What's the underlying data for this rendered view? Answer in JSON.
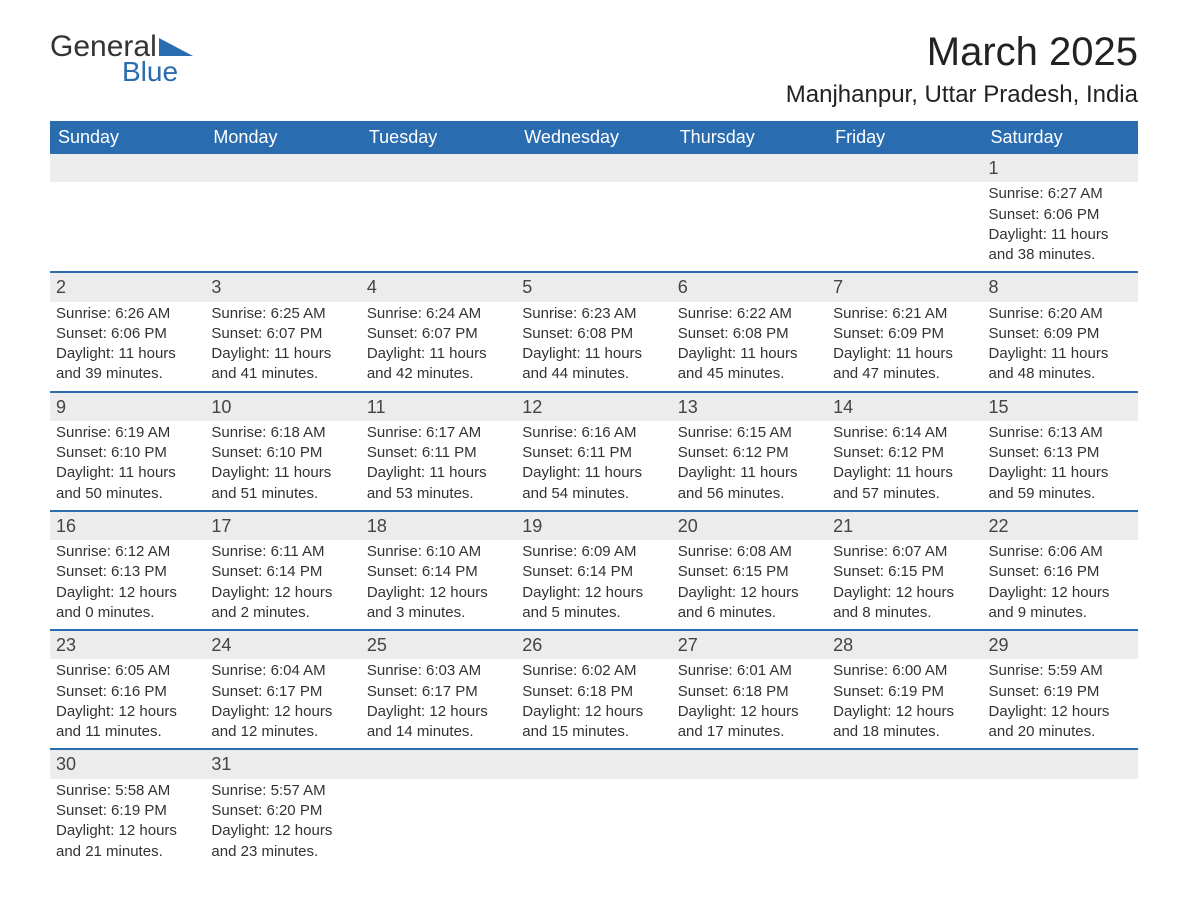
{
  "logo": {
    "general": "General",
    "blue": "Blue",
    "triangle_color": "#2a6cb0"
  },
  "title": "March 2025",
  "location": "Manjhanpur, Uttar Pradesh, India",
  "colors": {
    "header_bg": "#2a6cb0",
    "header_fg": "#ffffff",
    "daynum_bg": "#ececec",
    "text": "#333333",
    "row_divider": "#2a6cb0"
  },
  "fonts": {
    "title_size_pt": 30,
    "location_size_pt": 18,
    "header_size_pt": 14,
    "daynum_size_pt": 14,
    "body_size_pt": 11
  },
  "weekdays": [
    "Sunday",
    "Monday",
    "Tuesday",
    "Wednesday",
    "Thursday",
    "Friday",
    "Saturday"
  ],
  "weeks": [
    [
      null,
      null,
      null,
      null,
      null,
      null,
      {
        "n": "1",
        "sunrise": "Sunrise: 6:27 AM",
        "sunset": "Sunset: 6:06 PM",
        "daylight1": "Daylight: 11 hours",
        "daylight2": "and 38 minutes."
      }
    ],
    [
      {
        "n": "2",
        "sunrise": "Sunrise: 6:26 AM",
        "sunset": "Sunset: 6:06 PM",
        "daylight1": "Daylight: 11 hours",
        "daylight2": "and 39 minutes."
      },
      {
        "n": "3",
        "sunrise": "Sunrise: 6:25 AM",
        "sunset": "Sunset: 6:07 PM",
        "daylight1": "Daylight: 11 hours",
        "daylight2": "and 41 minutes."
      },
      {
        "n": "4",
        "sunrise": "Sunrise: 6:24 AM",
        "sunset": "Sunset: 6:07 PM",
        "daylight1": "Daylight: 11 hours",
        "daylight2": "and 42 minutes."
      },
      {
        "n": "5",
        "sunrise": "Sunrise: 6:23 AM",
        "sunset": "Sunset: 6:08 PM",
        "daylight1": "Daylight: 11 hours",
        "daylight2": "and 44 minutes."
      },
      {
        "n": "6",
        "sunrise": "Sunrise: 6:22 AM",
        "sunset": "Sunset: 6:08 PM",
        "daylight1": "Daylight: 11 hours",
        "daylight2": "and 45 minutes."
      },
      {
        "n": "7",
        "sunrise": "Sunrise: 6:21 AM",
        "sunset": "Sunset: 6:09 PM",
        "daylight1": "Daylight: 11 hours",
        "daylight2": "and 47 minutes."
      },
      {
        "n": "8",
        "sunrise": "Sunrise: 6:20 AM",
        "sunset": "Sunset: 6:09 PM",
        "daylight1": "Daylight: 11 hours",
        "daylight2": "and 48 minutes."
      }
    ],
    [
      {
        "n": "9",
        "sunrise": "Sunrise: 6:19 AM",
        "sunset": "Sunset: 6:10 PM",
        "daylight1": "Daylight: 11 hours",
        "daylight2": "and 50 minutes."
      },
      {
        "n": "10",
        "sunrise": "Sunrise: 6:18 AM",
        "sunset": "Sunset: 6:10 PM",
        "daylight1": "Daylight: 11 hours",
        "daylight2": "and 51 minutes."
      },
      {
        "n": "11",
        "sunrise": "Sunrise: 6:17 AM",
        "sunset": "Sunset: 6:11 PM",
        "daylight1": "Daylight: 11 hours",
        "daylight2": "and 53 minutes."
      },
      {
        "n": "12",
        "sunrise": "Sunrise: 6:16 AM",
        "sunset": "Sunset: 6:11 PM",
        "daylight1": "Daylight: 11 hours",
        "daylight2": "and 54 minutes."
      },
      {
        "n": "13",
        "sunrise": "Sunrise: 6:15 AM",
        "sunset": "Sunset: 6:12 PM",
        "daylight1": "Daylight: 11 hours",
        "daylight2": "and 56 minutes."
      },
      {
        "n": "14",
        "sunrise": "Sunrise: 6:14 AM",
        "sunset": "Sunset: 6:12 PM",
        "daylight1": "Daylight: 11 hours",
        "daylight2": "and 57 minutes."
      },
      {
        "n": "15",
        "sunrise": "Sunrise: 6:13 AM",
        "sunset": "Sunset: 6:13 PM",
        "daylight1": "Daylight: 11 hours",
        "daylight2": "and 59 minutes."
      }
    ],
    [
      {
        "n": "16",
        "sunrise": "Sunrise: 6:12 AM",
        "sunset": "Sunset: 6:13 PM",
        "daylight1": "Daylight: 12 hours",
        "daylight2": "and 0 minutes."
      },
      {
        "n": "17",
        "sunrise": "Sunrise: 6:11 AM",
        "sunset": "Sunset: 6:14 PM",
        "daylight1": "Daylight: 12 hours",
        "daylight2": "and 2 minutes."
      },
      {
        "n": "18",
        "sunrise": "Sunrise: 6:10 AM",
        "sunset": "Sunset: 6:14 PM",
        "daylight1": "Daylight: 12 hours",
        "daylight2": "and 3 minutes."
      },
      {
        "n": "19",
        "sunrise": "Sunrise: 6:09 AM",
        "sunset": "Sunset: 6:14 PM",
        "daylight1": "Daylight: 12 hours",
        "daylight2": "and 5 minutes."
      },
      {
        "n": "20",
        "sunrise": "Sunrise: 6:08 AM",
        "sunset": "Sunset: 6:15 PM",
        "daylight1": "Daylight: 12 hours",
        "daylight2": "and 6 minutes."
      },
      {
        "n": "21",
        "sunrise": "Sunrise: 6:07 AM",
        "sunset": "Sunset: 6:15 PM",
        "daylight1": "Daylight: 12 hours",
        "daylight2": "and 8 minutes."
      },
      {
        "n": "22",
        "sunrise": "Sunrise: 6:06 AM",
        "sunset": "Sunset: 6:16 PM",
        "daylight1": "Daylight: 12 hours",
        "daylight2": "and 9 minutes."
      }
    ],
    [
      {
        "n": "23",
        "sunrise": "Sunrise: 6:05 AM",
        "sunset": "Sunset: 6:16 PM",
        "daylight1": "Daylight: 12 hours",
        "daylight2": "and 11 minutes."
      },
      {
        "n": "24",
        "sunrise": "Sunrise: 6:04 AM",
        "sunset": "Sunset: 6:17 PM",
        "daylight1": "Daylight: 12 hours",
        "daylight2": "and 12 minutes."
      },
      {
        "n": "25",
        "sunrise": "Sunrise: 6:03 AM",
        "sunset": "Sunset: 6:17 PM",
        "daylight1": "Daylight: 12 hours",
        "daylight2": "and 14 minutes."
      },
      {
        "n": "26",
        "sunrise": "Sunrise: 6:02 AM",
        "sunset": "Sunset: 6:18 PM",
        "daylight1": "Daylight: 12 hours",
        "daylight2": "and 15 minutes."
      },
      {
        "n": "27",
        "sunrise": "Sunrise: 6:01 AM",
        "sunset": "Sunset: 6:18 PM",
        "daylight1": "Daylight: 12 hours",
        "daylight2": "and 17 minutes."
      },
      {
        "n": "28",
        "sunrise": "Sunrise: 6:00 AM",
        "sunset": "Sunset: 6:19 PM",
        "daylight1": "Daylight: 12 hours",
        "daylight2": "and 18 minutes."
      },
      {
        "n": "29",
        "sunrise": "Sunrise: 5:59 AM",
        "sunset": "Sunset: 6:19 PM",
        "daylight1": "Daylight: 12 hours",
        "daylight2": "and 20 minutes."
      }
    ],
    [
      {
        "n": "30",
        "sunrise": "Sunrise: 5:58 AM",
        "sunset": "Sunset: 6:19 PM",
        "daylight1": "Daylight: 12 hours",
        "daylight2": "and 21 minutes."
      },
      {
        "n": "31",
        "sunrise": "Sunrise: 5:57 AM",
        "sunset": "Sunset: 6:20 PM",
        "daylight1": "Daylight: 12 hours",
        "daylight2": "and 23 minutes."
      },
      null,
      null,
      null,
      null,
      null
    ]
  ]
}
